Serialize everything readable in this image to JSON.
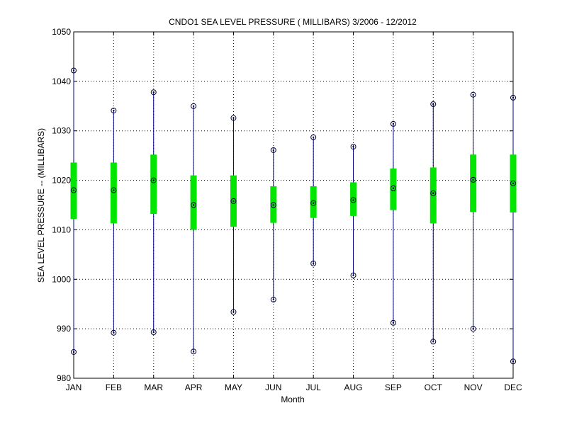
{
  "chart_data": {
    "type": "box",
    "title": "CNDO1  SEA LEVEL PRESSURE ( MILLIBARS) 3/2006 - 12/2012",
    "xlabel": "Month",
    "ylabel": "SEA LEVEL PRESSURE -- (MILLIBARS)",
    "ylim": [
      980,
      1050
    ],
    "yticks": [
      980,
      990,
      1000,
      1010,
      1020,
      1030,
      1040,
      1050
    ],
    "grid": true,
    "categories": [
      "JAN",
      "FEB",
      "MAR",
      "APR",
      "MAY",
      "JUN",
      "JUL",
      "AUG",
      "SEP",
      "OCT",
      "NOV",
      "DEC"
    ],
    "series": [
      {
        "min": [
          985.3,
          989.2,
          989.3,
          985.4,
          993.4,
          995.9,
          1003.2,
          1000.8,
          991.2,
          987.4,
          990.0,
          983.4
        ],
        "box_low": [
          1012.2,
          1011.3,
          1013.2,
          1010.0,
          1010.6,
          1011.4,
          1012.4,
          1012.8,
          1014.0,
          1011.3,
          1013.6,
          1013.5
        ],
        "median": [
          1018.0,
          1018.0,
          1020.0,
          1015.0,
          1015.8,
          1015.0,
          1015.4,
          1016.0,
          1018.4,
          1017.4,
          1020.1,
          1019.4
        ],
        "box_high": [
          1023.6,
          1023.6,
          1025.2,
          1021.0,
          1021.0,
          1018.8,
          1018.8,
          1019.6,
          1022.4,
          1022.6,
          1025.2,
          1025.2
        ],
        "max": [
          1042.2,
          1034.1,
          1037.8,
          1035.0,
          1032.6,
          1026.1,
          1028.7,
          1026.8,
          1031.4,
          1035.4,
          1037.3,
          1036.7
        ]
      }
    ],
    "colors": {
      "whisker": "#00008b",
      "box": "#00e600",
      "marker": "#000033",
      "grid": "#000000",
      "axis": "#000000"
    }
  }
}
